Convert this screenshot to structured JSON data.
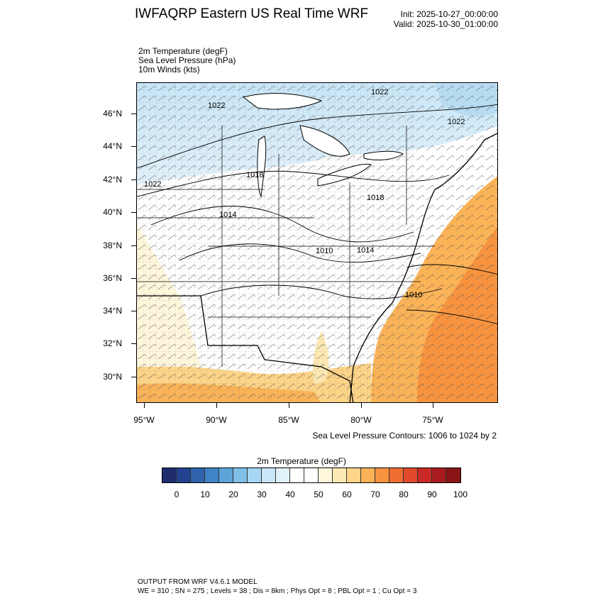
{
  "header": {
    "title": "IWFAQRP Eastern US Real Time WRF",
    "init": "Init: 2025-10-27_00:00:00",
    "valid": "Valid: 2025-10-30_01:00:00"
  },
  "fields": [
    "2m Temperature   (degF)",
    "Sea Level Pressure   (hPa)",
    "10m Winds   (kts)"
  ],
  "map": {
    "latitude_labels": [
      "46°N",
      "44°N",
      "42°N",
      "40°N",
      "38°N",
      "36°N",
      "34°N",
      "32°N",
      "30°N"
    ],
    "longitude_labels": [
      "95°W",
      "90°W",
      "85°W",
      "80°W",
      "75°W"
    ],
    "pressure_contour_labels": [
      "1022",
      "1022",
      "1022",
      "1018",
      "1018",
      "1014",
      "1014",
      "1010",
      "1010",
      "1022"
    ]
  },
  "contour_note": "Sea Level Pressure Contours: 1006 to 1024 by 2",
  "colorbar": {
    "title": "2m Temperature  (degF)",
    "labels": [
      "0",
      "10",
      "20",
      "30",
      "40",
      "50",
      "60",
      "70",
      "80",
      "90",
      "100"
    ],
    "colors": [
      "#1f2d6e",
      "#22418f",
      "#2f63ad",
      "#3f85c6",
      "#5ba3d8",
      "#7fbfe8",
      "#a6d6f3",
      "#c8e6f7",
      "#e3f1fa",
      "#ffffff",
      "#ffffff",
      "#fff7dc",
      "#fde9b3",
      "#fdd488",
      "#fbb357",
      "#f7933f",
      "#ee6d33",
      "#e24a2c",
      "#c92a26",
      "#a81c20",
      "#8a1517"
    ]
  },
  "footer": {
    "line1": "OUTPUT FROM WRF V4.6.1 MODEL",
    "line2": "WE = 310 ; SN = 275 ; Levels = 38 ; Dis = 8km ; Phys Opt = 8 ; PBL Opt = 1 ; Cu Opt = 3"
  }
}
